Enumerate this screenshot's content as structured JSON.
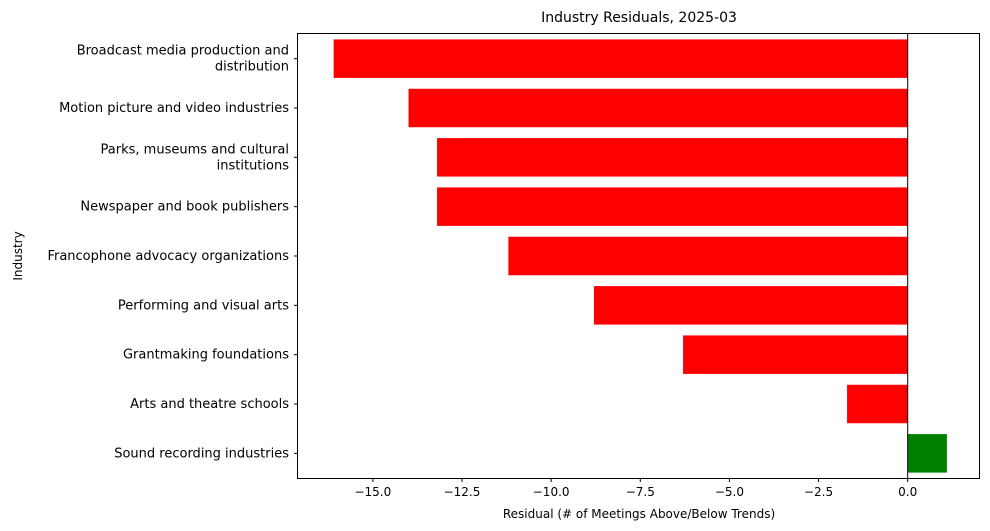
{
  "chart_data": {
    "type": "bar",
    "orientation": "horizontal",
    "title": "Industry Residuals, 2025-03",
    "xlabel": "Residual (# of Meetings Above/Below Trends)",
    "ylabel": "Industry",
    "xlim": [
      -17.1,
      2.0
    ],
    "xticks": [
      -15.0,
      -12.5,
      -10.0,
      -7.5,
      -5.0,
      -2.5,
      0.0
    ],
    "xtick_labels": [
      "−15.0",
      "−12.5",
      "−10.0",
      "−7.5",
      "−5.0",
      "−2.5",
      "0.0"
    ],
    "zero_line": true,
    "grid": false,
    "legend": "none",
    "colors": {
      "negative": "#ff0000",
      "positive": "#008000",
      "zero_line": "#000000"
    },
    "categories": [
      [
        "Broadcast media production and",
        "distribution"
      ],
      [
        "Motion picture and video industries"
      ],
      [
        "Parks, museums and cultural",
        "institutions"
      ],
      [
        "Newspaper and book publishers"
      ],
      [
        "Francophone advocacy organizations"
      ],
      [
        "Performing and visual arts"
      ],
      [
        "Grantmaking foundations"
      ],
      [
        "Arts and theatre schools"
      ],
      [
        "Sound recording industries"
      ]
    ],
    "values": [
      -16.1,
      -14.0,
      -13.2,
      -13.2,
      -11.2,
      -8.8,
      -6.3,
      -1.7,
      1.1
    ]
  }
}
